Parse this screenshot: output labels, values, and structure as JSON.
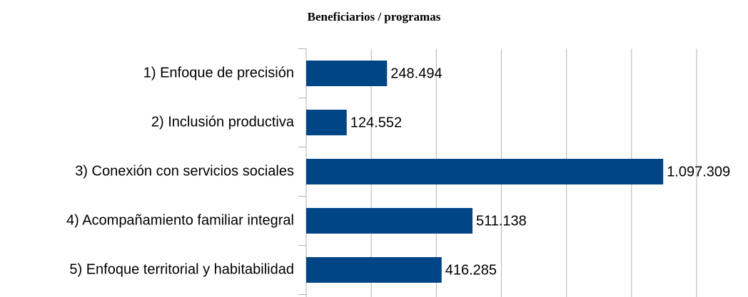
{
  "chart_data": {
    "type": "barh",
    "title": "Beneficiarios / programas",
    "categories": [
      "1) Enfoque de precisión",
      "2) Inclusión productiva",
      "3) Conexión con servicios sociales",
      "4) Acompañamiento familiar integral",
      "5) Enfoque territorial y habitabilidad"
    ],
    "values": [
      248494,
      124552,
      1097309,
      511138,
      416285
    ],
    "value_labels": [
      "248.494",
      "124.552",
      "1.097.309",
      "511.138",
      "416.285"
    ],
    "color": "#004586",
    "xlim": [
      0,
      1200000
    ],
    "xticks": [
      0,
      200000,
      400000,
      600000,
      800000,
      1000000,
      1200000
    ],
    "grid": true
  }
}
